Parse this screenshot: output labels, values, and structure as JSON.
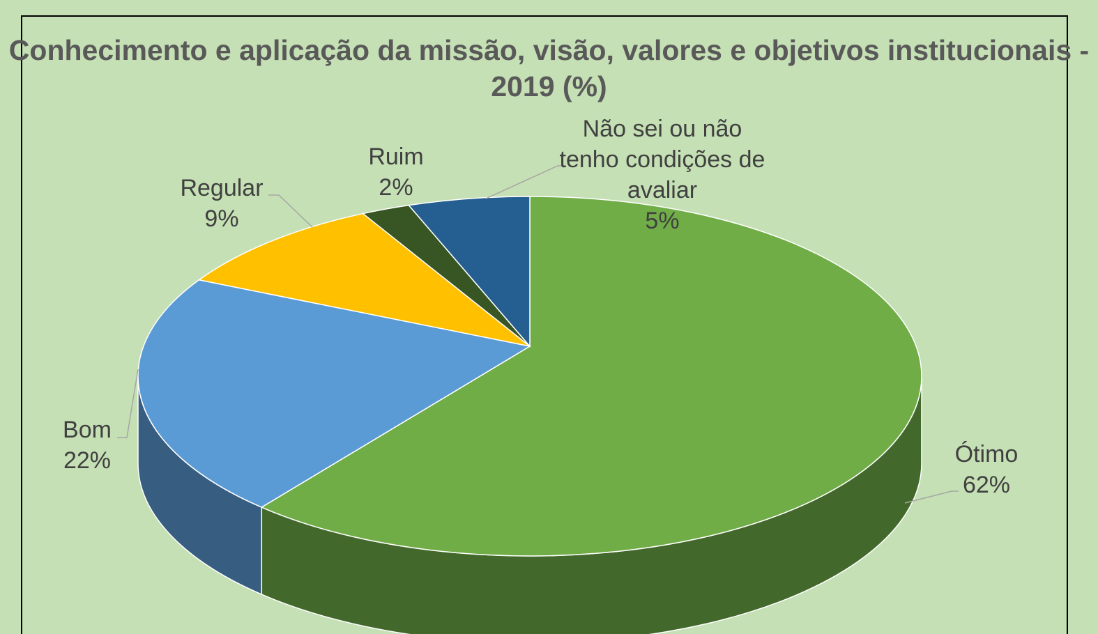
{
  "chart_data": {
    "type": "pie3d",
    "title": "Conhecimento e aplicação da missão, visão, valores e objetivos institucionais - 2019 (%)",
    "categories": [
      "Ótimo",
      "Bom",
      "Regular",
      "Ruim",
      "Não sei ou não tenho condições de avaliar"
    ],
    "values": [
      62,
      22,
      9,
      2,
      5
    ],
    "value_labels": [
      "62%",
      "22%",
      "9%",
      "2%",
      "5%"
    ],
    "colors": [
      "#70ad47",
      "#5b9bd5",
      "#ffc000",
      "#375623",
      "#255e91"
    ]
  }
}
